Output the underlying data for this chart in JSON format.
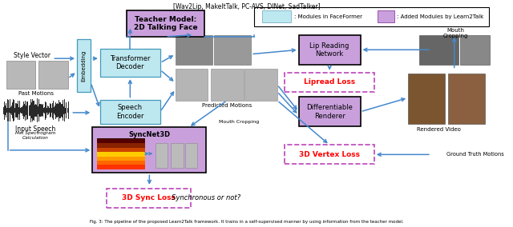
{
  "title_top": "[Wav2Lip, MakeItTalk, PC-AVS, DINet, SadTalker]",
  "caption": "Fig. 3: The pipeline of the proposed Learn2Talk framework. It trains in a self-supervised manner by using information from the teacher model.",
  "legend_cyan_label": ": Modules in FaceFormer",
  "legend_purple_label": ": Added Modules by Learn2Talk",
  "background_color": "#FFFFFF",
  "arrow_color": "#4488CC"
}
